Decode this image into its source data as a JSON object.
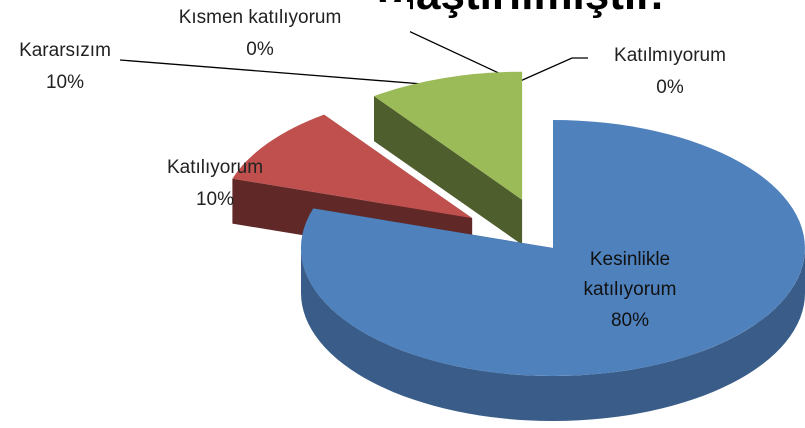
{
  "chart_data": {
    "type": "pie3d",
    "title": "ulaştırılmıştır.",
    "categories": [
      "Kesinlikle katılıyorum",
      "Katılıyorum",
      "Kararsızım",
      "Kısmen katılıyorum",
      "Katılmıyorum"
    ],
    "values": [
      80,
      10,
      10,
      0,
      0
    ],
    "value_labels": [
      "80%",
      "10%",
      "10%",
      "0%",
      "0%"
    ],
    "colors": [
      "#4f81bd",
      "#c0504d",
      "#9bbb59",
      "#8064a2",
      "#4bacc6"
    ]
  }
}
